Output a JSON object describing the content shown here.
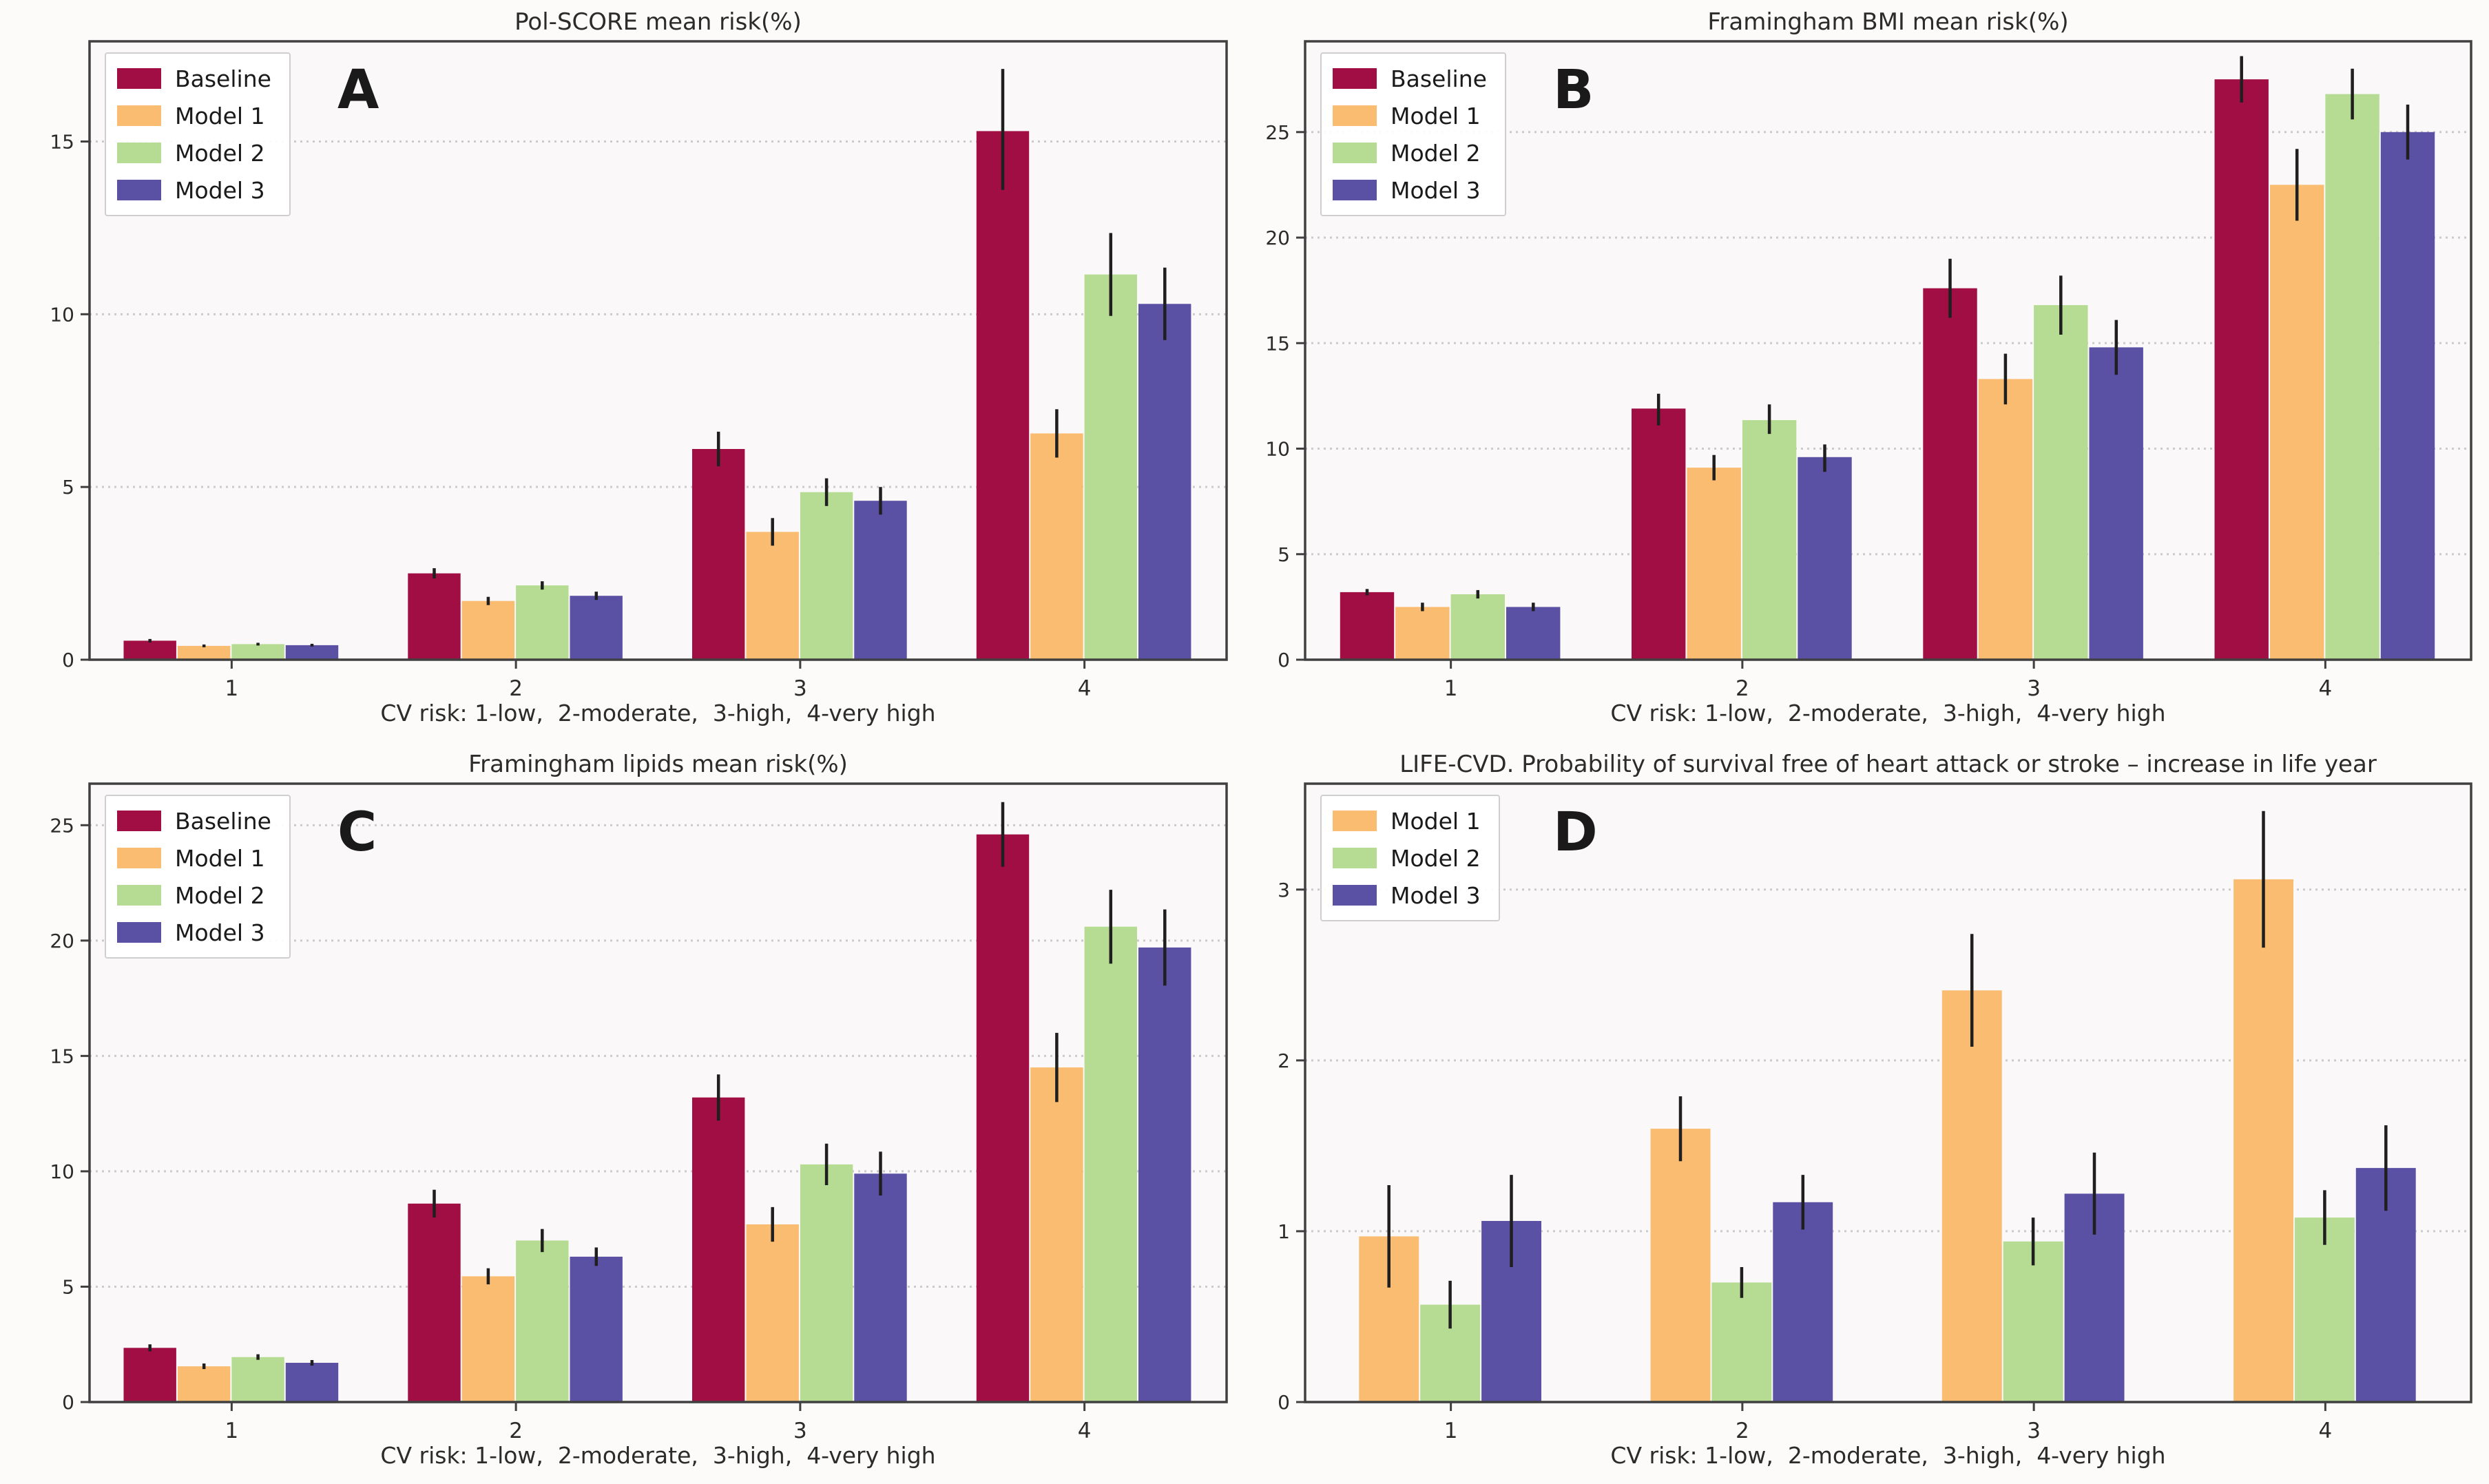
{
  "figure": {
    "background": "#fcfbfa",
    "plot_background": "#faf8f8",
    "spine_color": "#404040",
    "grid_color": "#c4c4c4",
    "error_bar_color": "#1f1f1f",
    "series_colors": {
      "Baseline": "#a00e44",
      "Model 1": "#f9bc71",
      "Model 2": "#b5dc92",
      "Model 3": "#5a51a5"
    }
  },
  "chart_data": [
    {
      "letter": "A",
      "type": "bar",
      "title": "Pol-SCORE mean risk(%)",
      "xlabel": "CV risk: 1-low,  2-moderate,  3-high,  4-very high",
      "categories": [
        "1",
        "2",
        "3",
        "4"
      ],
      "ylim": [
        0,
        17.9
      ],
      "yticks": [
        0,
        5,
        10,
        15
      ],
      "grid": "dashed-horizontal",
      "legend_position": "upper-left",
      "series": [
        {
          "name": "Baseline",
          "color": "#a00e44",
          "values": [
            0.55,
            2.5,
            6.1,
            15.3
          ],
          "err_low": [
            0.5,
            2.35,
            5.6,
            13.6
          ],
          "err_high": [
            0.6,
            2.65,
            6.6,
            17.1
          ]
        },
        {
          "name": "Model 1",
          "color": "#f9bc71",
          "values": [
            0.4,
            1.7,
            3.7,
            6.55
          ],
          "err_low": [
            0.36,
            1.58,
            3.3,
            5.85
          ],
          "err_high": [
            0.44,
            1.82,
            4.1,
            7.25
          ]
        },
        {
          "name": "Model 2",
          "color": "#b5dc92",
          "values": [
            0.45,
            2.15,
            4.85,
            11.15
          ],
          "err_low": [
            0.41,
            2.03,
            4.45,
            9.95
          ],
          "err_high": [
            0.49,
            2.27,
            5.25,
            12.35
          ]
        },
        {
          "name": "Model 3",
          "color": "#5a51a5",
          "values": [
            0.42,
            1.85,
            4.6,
            10.3
          ],
          "err_low": [
            0.38,
            1.73,
            4.2,
            9.25
          ],
          "err_high": [
            0.46,
            1.97,
            5.0,
            11.35
          ]
        }
      ]
    },
    {
      "letter": "B",
      "type": "bar",
      "title": "Framingham BMI mean risk(%)",
      "xlabel": "CV risk: 1-low,  2-moderate,  3-high,  4-very high",
      "categories": [
        "1",
        "2",
        "3",
        "4"
      ],
      "ylim": [
        0,
        29.3
      ],
      "yticks": [
        0,
        5,
        10,
        15,
        20,
        25
      ],
      "grid": "dashed-horizontal",
      "legend_position": "upper-left",
      "series": [
        {
          "name": "Baseline",
          "color": "#a00e44",
          "values": [
            3.2,
            11.9,
            17.6,
            27.5
          ],
          "err_low": [
            3.05,
            11.1,
            16.2,
            26.4
          ],
          "err_high": [
            3.35,
            12.6,
            19.0,
            28.6
          ]
        },
        {
          "name": "Model 1",
          "color": "#f9bc71",
          "values": [
            2.5,
            9.1,
            13.3,
            22.5
          ],
          "err_low": [
            2.3,
            8.5,
            12.1,
            20.8
          ],
          "err_high": [
            2.7,
            9.7,
            14.5,
            24.2
          ]
        },
        {
          "name": "Model 2",
          "color": "#b5dc92",
          "values": [
            3.1,
            11.35,
            16.8,
            26.8
          ],
          "err_low": [
            2.9,
            10.7,
            15.4,
            25.6
          ],
          "err_high": [
            3.3,
            12.1,
            18.2,
            28.0
          ]
        },
        {
          "name": "Model 3",
          "color": "#5a51a5",
          "values": [
            2.5,
            9.6,
            14.8,
            25.0
          ],
          "err_low": [
            2.3,
            8.9,
            13.5,
            23.7
          ],
          "err_high": [
            2.7,
            10.2,
            16.1,
            26.3
          ]
        }
      ]
    },
    {
      "letter": "C",
      "type": "bar",
      "title": "Framingham lipids mean risk(%)",
      "xlabel": "CV risk: 1-low,  2-moderate,  3-high,  4-very high",
      "categories": [
        "1",
        "2",
        "3",
        "4"
      ],
      "ylim": [
        0,
        26.8
      ],
      "yticks": [
        0,
        5,
        10,
        15,
        20,
        25
      ],
      "grid": "dashed-horizontal",
      "legend_position": "upper-left",
      "series": [
        {
          "name": "Baseline",
          "color": "#a00e44",
          "values": [
            2.35,
            8.6,
            13.2,
            24.6
          ],
          "err_low": [
            2.2,
            8.0,
            12.2,
            23.2
          ],
          "err_high": [
            2.5,
            9.2,
            14.2,
            26.0
          ]
        },
        {
          "name": "Model 1",
          "color": "#f9bc71",
          "values": [
            1.55,
            5.45,
            7.7,
            14.5
          ],
          "err_low": [
            1.43,
            5.1,
            6.95,
            13.0
          ],
          "err_high": [
            1.67,
            5.8,
            8.45,
            16.0
          ]
        },
        {
          "name": "Model 2",
          "color": "#b5dc92",
          "values": [
            1.95,
            7.0,
            10.3,
            20.6
          ],
          "err_low": [
            1.83,
            6.5,
            9.4,
            19.0
          ],
          "err_high": [
            2.07,
            7.5,
            11.2,
            22.2
          ]
        },
        {
          "name": "Model 3",
          "color": "#5a51a5",
          "values": [
            1.7,
            6.3,
            9.9,
            19.7
          ],
          "err_low": [
            1.58,
            5.9,
            8.95,
            18.05
          ],
          "err_high": [
            1.82,
            6.7,
            10.85,
            21.35
          ]
        }
      ]
    },
    {
      "letter": "D",
      "type": "bar",
      "title": "LIFE-CVD. Probability of survival free of heart attack or stroke – increase in life year",
      "xlabel": "CV risk: 1-low,  2-moderate,  3-high,  4-very high",
      "categories": [
        "1",
        "2",
        "3",
        "4"
      ],
      "ylim": [
        0,
        3.62
      ],
      "yticks": [
        0,
        1,
        2,
        3
      ],
      "grid": "dashed-horizontal",
      "legend_position": "upper-left",
      "series": [
        {
          "name": "Model 1",
          "color": "#f9bc71",
          "values": [
            0.97,
            1.6,
            2.41,
            3.06
          ],
          "err_low": [
            0.67,
            1.41,
            2.08,
            2.66
          ],
          "err_high": [
            1.27,
            1.79,
            2.74,
            3.46
          ]
        },
        {
          "name": "Model 2",
          "color": "#b5dc92",
          "values": [
            0.57,
            0.7,
            0.94,
            1.08
          ],
          "err_low": [
            0.43,
            0.61,
            0.8,
            0.92
          ],
          "err_high": [
            0.71,
            0.79,
            1.08,
            1.24
          ]
        },
        {
          "name": "Model 3",
          "color": "#5a51a5",
          "values": [
            1.06,
            1.17,
            1.22,
            1.37
          ],
          "err_low": [
            0.79,
            1.01,
            0.98,
            1.12
          ],
          "err_high": [
            1.33,
            1.33,
            1.46,
            1.62
          ]
        }
      ]
    }
  ]
}
